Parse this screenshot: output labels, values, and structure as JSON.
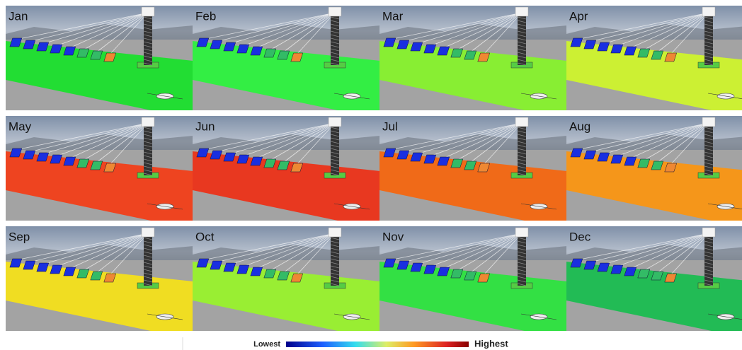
{
  "panels": [
    {
      "label": "Jan",
      "color": "#22dd33"
    },
    {
      "label": "Feb",
      "color": "#33ee44"
    },
    {
      "label": "Mar",
      "color": "#88ee33"
    },
    {
      "label": "Apr",
      "color": "#ccf033"
    },
    {
      "label": "May",
      "color": "#ee4420"
    },
    {
      "label": "Jun",
      "color": "#e83820"
    },
    {
      "label": "Jul",
      "color": "#f06a18"
    },
    {
      "label": "Aug",
      "color": "#f5961a"
    },
    {
      "label": "Sep",
      "color": "#f0dd22"
    },
    {
      "label": "Oct",
      "color": "#99ee33"
    },
    {
      "label": "Nov",
      "color": "#33e044"
    },
    {
      "label": "Dec",
      "color": "#22bb55"
    }
  ],
  "legend": {
    "low": "Lowest",
    "high": "Highest"
  }
}
